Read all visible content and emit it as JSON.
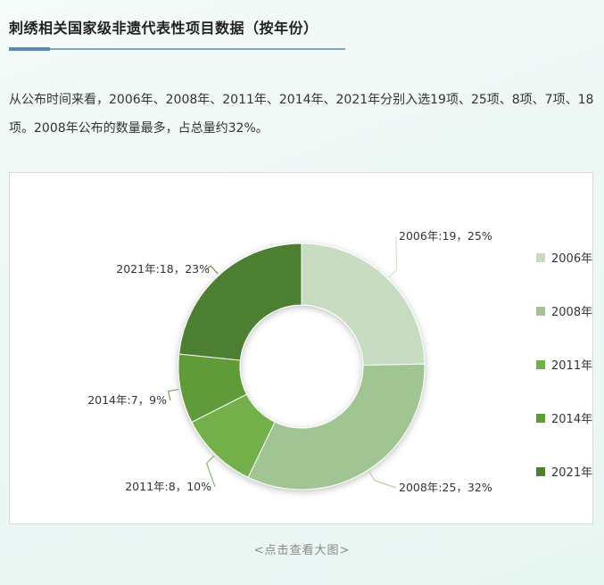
{
  "header": {
    "title": "刺绣相关国家级非遗代表性项目数据（按年份）"
  },
  "description": "从公布时间来看，2006年、2008年、2011年、2014年、2021年分别入选19项、25项、8项、7项、18项。2008年公布的数量最多，占总量约32%。",
  "caption": "<点击查看大图>",
  "colors": {
    "accent": "#5a86b3",
    "slice_2006": "#c7dcc0",
    "slice_2008": "#a1c592",
    "slice_2011": "#73b04a",
    "slice_2014": "#5e9b39",
    "slice_2021": "#4e7f31"
  },
  "chart_data": {
    "type": "pie",
    "variant": "donut",
    "title": "",
    "legend_position": "right",
    "categories": [
      "2006年",
      "2008年",
      "2011年",
      "2014年",
      "2021年"
    ],
    "values": [
      19,
      25,
      8,
      7,
      18
    ],
    "percents": [
      25,
      32,
      10,
      9,
      23
    ],
    "data_labels": [
      "2006年:19，25%",
      "2008年:25，32%",
      "2011年:8，10%",
      "2014年:7，9%",
      "2021年:18，23%"
    ]
  }
}
